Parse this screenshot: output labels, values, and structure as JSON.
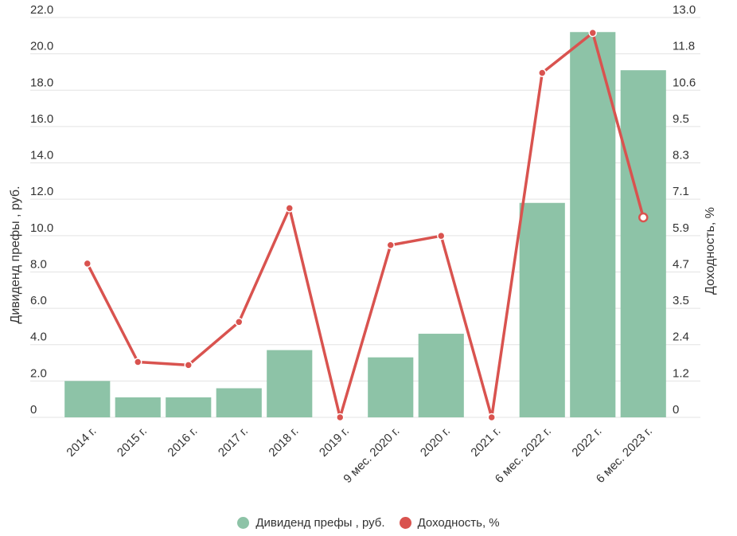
{
  "chart_data": {
    "type": "bar",
    "categories": [
      "2014 г.",
      "2015 г.",
      "2016 г.",
      "2017 г.",
      "2018 г.",
      "2019 г.",
      "9 мес. 2020 г.",
      "2020 г.",
      "2021 г.",
      "6 мес. 2022 г.",
      "2022 г.",
      "6 мес. 2023 г."
    ],
    "series": [
      {
        "name": "Дивиденд префы , руб.",
        "type": "bar",
        "axis": "left",
        "color": "#8dc3a7",
        "values": [
          2.0,
          1.1,
          1.1,
          1.6,
          3.7,
          0,
          3.3,
          4.6,
          0,
          11.8,
          21.2,
          19.1
        ]
      },
      {
        "name": "Доходность, %",
        "type": "line",
        "axis": "right",
        "color": "#d9534f",
        "values": [
          5.0,
          1.8,
          1.7,
          3.1,
          6.8,
          0,
          5.6,
          5.9,
          0,
          11.2,
          12.5,
          6.5
        ]
      }
    ],
    "ylabel": "Дивиденд префы , руб.",
    "y2label": "Доходность, %",
    "ylim": [
      0,
      22
    ],
    "y2lim": [
      0,
      13
    ],
    "yticks": [
      "0",
      "2.0",
      "4.0",
      "6.0",
      "8.0",
      "10.0",
      "12.0",
      "14.0",
      "16.0",
      "18.0",
      "20.0",
      "22.0"
    ],
    "y2ticks": [
      "0",
      "1.2",
      "2.4",
      "3.5",
      "4.7",
      "5.9",
      "7.1",
      "8.3",
      "9.5",
      "10.6",
      "11.8",
      "13.0"
    ],
    "grid": true,
    "legend_position": "bottom"
  }
}
